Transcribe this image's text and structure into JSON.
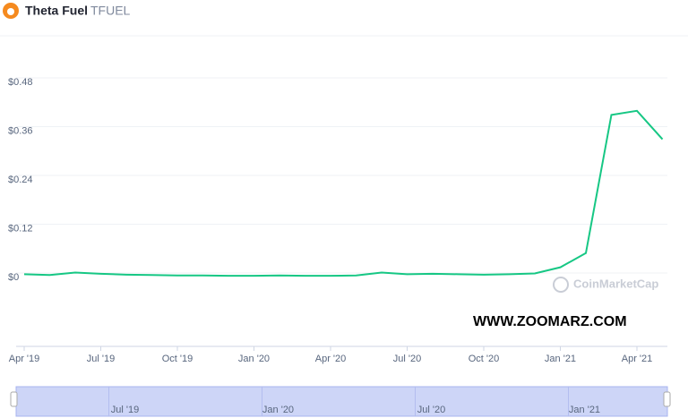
{
  "header": {
    "name": "Theta Fuel",
    "symbol": "TFUEL"
  },
  "watermark": "CoinMarketCap",
  "overlay_text": "WWW.ZOOMARZ.COM",
  "chart_data": {
    "type": "line",
    "color": "#16c784",
    "x": [
      "2019-04",
      "2019-05",
      "2019-06",
      "2019-07",
      "2019-08",
      "2019-09",
      "2019-10",
      "2019-11",
      "2019-12",
      "2020-01",
      "2020-02",
      "2020-03",
      "2020-04",
      "2020-05",
      "2020-06",
      "2020-07",
      "2020-08",
      "2020-09",
      "2020-10",
      "2020-11",
      "2020-12",
      "2021-01",
      "2021-02",
      "2021-03",
      "2021-04",
      "2021-05"
    ],
    "values": [
      0.008,
      0.006,
      0.012,
      0.009,
      0.007,
      0.006,
      0.005,
      0.005,
      0.004,
      0.004,
      0.005,
      0.004,
      0.004,
      0.005,
      0.012,
      0.008,
      0.009,
      0.008,
      0.007,
      0.008,
      0.01,
      0.025,
      0.06,
      0.4,
      0.41,
      0.34
    ],
    "ylim": [
      0,
      0.48
    ],
    "yticks": [
      {
        "value": 0,
        "label": "$0"
      },
      {
        "value": 0.12,
        "label": "$0.12"
      },
      {
        "value": 0.24,
        "label": "$0.24"
      },
      {
        "value": 0.36,
        "label": "$0.36"
      },
      {
        "value": 0.48,
        "label": "$0.48"
      }
    ],
    "xticks": [
      {
        "value": "2019-04",
        "label": "Apr '19"
      },
      {
        "value": "2019-07",
        "label": "Jul '19"
      },
      {
        "value": "2019-10",
        "label": "Oct '19"
      },
      {
        "value": "2020-01",
        "label": "Jan '20"
      },
      {
        "value": "2020-04",
        "label": "Apr '20"
      },
      {
        "value": "2020-07",
        "label": "Jul '20"
      },
      {
        "value": "2020-10",
        "label": "Oct '20"
      },
      {
        "value": "2021-01",
        "label": "Jan '21"
      },
      {
        "value": "2021-04",
        "label": "Apr '21"
      }
    ],
    "grid": true
  },
  "navigator": {
    "ticks": [
      {
        "value": "2019-07",
        "label": "Jul '19"
      },
      {
        "value": "2020-01",
        "label": "Jan '20"
      },
      {
        "value": "2020-07",
        "label": "Jul '20"
      },
      {
        "value": "2021-01",
        "label": "Jan '21"
      }
    ]
  }
}
